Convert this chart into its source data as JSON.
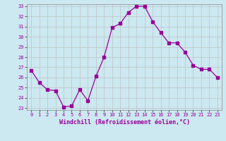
{
  "x": [
    0,
    1,
    2,
    3,
    4,
    5,
    6,
    7,
    8,
    9,
    10,
    11,
    12,
    13,
    14,
    15,
    16,
    17,
    18,
    19,
    20,
    21,
    22,
    23
  ],
  "y": [
    26.7,
    25.5,
    24.8,
    24.7,
    23.1,
    23.2,
    24.8,
    23.7,
    26.1,
    28.0,
    30.9,
    31.3,
    32.4,
    33.0,
    33.0,
    31.5,
    30.4,
    29.4,
    29.4,
    28.5,
    27.2,
    26.8,
    26.8,
    26.0
  ],
  "line_color": "#990099",
  "marker": "s",
  "marker_size": 2.5,
  "bg_color": "#cce8f0",
  "grid_color": "#bbbbbb",
  "xlabel": "Windchill (Refroidissement éolien,°C)",
  "xlabel_color": "#990099",
  "tick_color": "#990099",
  "ylim": [
    23,
    33
  ],
  "xlim": [
    -0.5,
    23.5
  ],
  "yticks": [
    23,
    24,
    25,
    26,
    27,
    28,
    29,
    30,
    31,
    32,
    33
  ],
  "xticks": [
    0,
    1,
    2,
    3,
    4,
    5,
    6,
    7,
    8,
    9,
    10,
    11,
    12,
    13,
    14,
    15,
    16,
    17,
    18,
    19,
    20,
    21,
    22,
    23
  ],
  "xtick_labels": [
    "0",
    "1",
    "2",
    "3",
    "4",
    "5",
    "6",
    "7",
    "8",
    "9",
    "10",
    "11",
    "12",
    "13",
    "14",
    "15",
    "16",
    "17",
    "18",
    "19",
    "20",
    "21",
    "22",
    "23"
  ],
  "ytick_labels": [
    "23",
    "24",
    "25",
    "26",
    "27",
    "28",
    "29",
    "30",
    "31",
    "32",
    "33"
  ]
}
